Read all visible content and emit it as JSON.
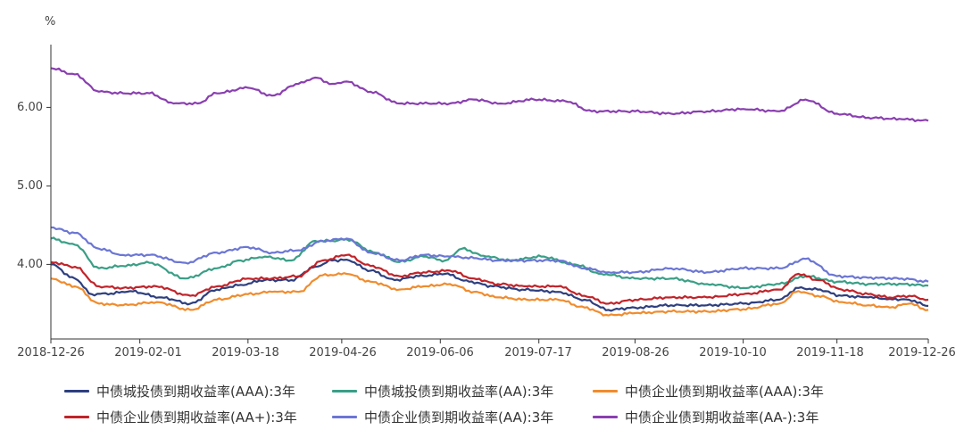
{
  "chart_data": {
    "type": "line",
    "y_unit": "%",
    "ylim": [
      3.05,
      6.8
    ],
    "y_ticks": [
      "4.00",
      "5.00",
      "6.00"
    ],
    "y_tick_values": [
      4.0,
      5.0,
      6.0
    ],
    "x_range": [
      "2018-12-26",
      "2019-12-26"
    ],
    "x_ticks": [
      "2018-12-26",
      "2019-02-01",
      "2019-03-18",
      "2019-04-26",
      "2019-06-06",
      "2019-07-17",
      "2019-08-26",
      "2019-10-10",
      "2019-11-18",
      "2019-12-26"
    ],
    "grid": false,
    "legend_position": "bottom",
    "series": [
      {
        "name": "中债城投债到期收益率(AAA):3年",
        "color": "#2e3f7f",
        "points": [
          [
            "2018-12-26",
            4.0
          ],
          [
            "2019-01-05",
            3.82
          ],
          [
            "2019-01-12",
            3.62
          ],
          [
            "2019-01-20",
            3.63
          ],
          [
            "2019-01-28",
            3.66
          ],
          [
            "2019-02-10",
            3.58
          ],
          [
            "2019-02-22",
            3.5
          ],
          [
            "2019-03-05",
            3.68
          ],
          [
            "2019-03-15",
            3.74
          ],
          [
            "2019-03-25",
            3.8
          ],
          [
            "2019-04-05",
            3.8
          ],
          [
            "2019-04-15",
            3.97
          ],
          [
            "2019-04-22",
            4.05
          ],
          [
            "2019-04-28",
            4.06
          ],
          [
            "2019-05-08",
            3.92
          ],
          [
            "2019-05-18",
            3.8
          ],
          [
            "2019-05-28",
            3.85
          ],
          [
            "2019-06-08",
            3.88
          ],
          [
            "2019-06-18",
            3.78
          ],
          [
            "2019-06-28",
            3.72
          ],
          [
            "2019-07-10",
            3.68
          ],
          [
            "2019-07-25",
            3.65
          ],
          [
            "2019-08-05",
            3.55
          ],
          [
            "2019-08-15",
            3.42
          ],
          [
            "2019-08-26",
            3.45
          ],
          [
            "2019-09-10",
            3.48
          ],
          [
            "2019-09-25",
            3.48
          ],
          [
            "2019-10-10",
            3.5
          ],
          [
            "2019-10-25",
            3.55
          ],
          [
            "2019-11-02",
            3.7
          ],
          [
            "2019-11-10",
            3.68
          ],
          [
            "2019-11-20",
            3.6
          ],
          [
            "2019-12-01",
            3.58
          ],
          [
            "2019-12-10",
            3.56
          ],
          [
            "2019-12-18",
            3.55
          ],
          [
            "2019-12-26",
            3.47
          ]
        ]
      },
      {
        "name": "中债城投债到期收益率(AA):3年",
        "color": "#3a9f86",
        "points": [
          [
            "2018-12-26",
            4.33
          ],
          [
            "2019-01-05",
            4.25
          ],
          [
            "2019-01-15",
            3.95
          ],
          [
            "2019-01-25",
            3.98
          ],
          [
            "2019-02-05",
            4.02
          ],
          [
            "2019-02-20",
            3.82
          ],
          [
            "2019-03-05",
            3.95
          ],
          [
            "2019-03-15",
            4.05
          ],
          [
            "2019-03-25",
            4.1
          ],
          [
            "2019-04-05",
            4.05
          ],
          [
            "2019-04-15",
            4.3
          ],
          [
            "2019-04-22",
            4.3
          ],
          [
            "2019-04-28",
            4.32
          ],
          [
            "2019-05-10",
            4.15
          ],
          [
            "2019-05-20",
            4.03
          ],
          [
            "2019-05-30",
            4.1
          ],
          [
            "2019-06-08",
            4.05
          ],
          [
            "2019-06-15",
            4.2
          ],
          [
            "2019-06-25",
            4.1
          ],
          [
            "2019-07-05",
            4.05
          ],
          [
            "2019-07-18",
            4.1
          ],
          [
            "2019-08-01",
            4.0
          ],
          [
            "2019-08-12",
            3.88
          ],
          [
            "2019-08-26",
            3.82
          ],
          [
            "2019-09-10",
            3.82
          ],
          [
            "2019-09-25",
            3.75
          ],
          [
            "2019-10-10",
            3.7
          ],
          [
            "2019-10-25",
            3.75
          ],
          [
            "2019-11-05",
            3.85
          ],
          [
            "2019-11-18",
            3.78
          ],
          [
            "2019-12-01",
            3.75
          ],
          [
            "2019-12-15",
            3.75
          ],
          [
            "2019-12-26",
            3.73
          ]
        ]
      },
      {
        "name": "中债企业债到期收益率(AAA):3年",
        "color": "#f08c2e",
        "points": [
          [
            "2018-12-26",
            3.82
          ],
          [
            "2019-01-05",
            3.72
          ],
          [
            "2019-01-15",
            3.5
          ],
          [
            "2019-01-25",
            3.48
          ],
          [
            "2019-02-08",
            3.52
          ],
          [
            "2019-02-22",
            3.42
          ],
          [
            "2019-03-05",
            3.55
          ],
          [
            "2019-03-18",
            3.62
          ],
          [
            "2019-03-28",
            3.65
          ],
          [
            "2019-04-08",
            3.65
          ],
          [
            "2019-04-18",
            3.86
          ],
          [
            "2019-04-28",
            3.88
          ],
          [
            "2019-05-08",
            3.78
          ],
          [
            "2019-05-20",
            3.68
          ],
          [
            "2019-05-30",
            3.72
          ],
          [
            "2019-06-10",
            3.75
          ],
          [
            "2019-06-20",
            3.65
          ],
          [
            "2019-06-30",
            3.58
          ],
          [
            "2019-07-12",
            3.55
          ],
          [
            "2019-07-25",
            3.55
          ],
          [
            "2019-08-05",
            3.45
          ],
          [
            "2019-08-15",
            3.35
          ],
          [
            "2019-08-26",
            3.38
          ],
          [
            "2019-09-10",
            3.4
          ],
          [
            "2019-09-25",
            3.4
          ],
          [
            "2019-10-10",
            3.43
          ],
          [
            "2019-10-25",
            3.5
          ],
          [
            "2019-11-02",
            3.66
          ],
          [
            "2019-11-10",
            3.6
          ],
          [
            "2019-11-20",
            3.52
          ],
          [
            "2019-12-01",
            3.48
          ],
          [
            "2019-12-10",
            3.45
          ],
          [
            "2019-12-18",
            3.5
          ],
          [
            "2019-12-26",
            3.42
          ]
        ]
      },
      {
        "name": "中债企业债到期收益率(AA+):3年",
        "color": "#c0242a",
        "points": [
          [
            "2018-12-26",
            4.03
          ],
          [
            "2019-01-05",
            3.97
          ],
          [
            "2019-01-15",
            3.72
          ],
          [
            "2019-01-25",
            3.7
          ],
          [
            "2019-02-08",
            3.72
          ],
          [
            "2019-02-22",
            3.6
          ],
          [
            "2019-03-05",
            3.72
          ],
          [
            "2019-03-18",
            3.82
          ],
          [
            "2019-03-28",
            3.82
          ],
          [
            "2019-04-08",
            3.85
          ],
          [
            "2019-04-18",
            4.05
          ],
          [
            "2019-04-28",
            4.12
          ],
          [
            "2019-05-08",
            3.98
          ],
          [
            "2019-05-20",
            3.85
          ],
          [
            "2019-05-30",
            3.9
          ],
          [
            "2019-06-10",
            3.92
          ],
          [
            "2019-06-20",
            3.82
          ],
          [
            "2019-06-30",
            3.75
          ],
          [
            "2019-07-12",
            3.72
          ],
          [
            "2019-07-25",
            3.72
          ],
          [
            "2019-08-05",
            3.6
          ],
          [
            "2019-08-15",
            3.5
          ],
          [
            "2019-08-26",
            3.55
          ],
          [
            "2019-09-10",
            3.58
          ],
          [
            "2019-09-25",
            3.58
          ],
          [
            "2019-10-10",
            3.62
          ],
          [
            "2019-10-25",
            3.68
          ],
          [
            "2019-11-02",
            3.88
          ],
          [
            "2019-11-10",
            3.8
          ],
          [
            "2019-11-20",
            3.68
          ],
          [
            "2019-12-01",
            3.62
          ],
          [
            "2019-12-10",
            3.58
          ],
          [
            "2019-12-18",
            3.6
          ],
          [
            "2019-12-26",
            3.55
          ]
        ]
      },
      {
        "name": "中债企业债到期收益率(AA):3年",
        "color": "#6b76d4",
        "points": [
          [
            "2018-12-26",
            4.47
          ],
          [
            "2019-01-05",
            4.4
          ],
          [
            "2019-01-15",
            4.2
          ],
          [
            "2019-01-25",
            4.12
          ],
          [
            "2019-02-05",
            4.12
          ],
          [
            "2019-02-20",
            4.02
          ],
          [
            "2019-03-05",
            4.15
          ],
          [
            "2019-03-18",
            4.22
          ],
          [
            "2019-03-28",
            4.15
          ],
          [
            "2019-04-08",
            4.18
          ],
          [
            "2019-04-18",
            4.3
          ],
          [
            "2019-04-28",
            4.33
          ],
          [
            "2019-05-08",
            4.15
          ],
          [
            "2019-05-20",
            4.05
          ],
          [
            "2019-05-30",
            4.12
          ],
          [
            "2019-06-10",
            4.1
          ],
          [
            "2019-06-20",
            4.08
          ],
          [
            "2019-06-30",
            4.05
          ],
          [
            "2019-07-12",
            4.05
          ],
          [
            "2019-07-25",
            4.05
          ],
          [
            "2019-08-05",
            3.95
          ],
          [
            "2019-08-15",
            3.9
          ],
          [
            "2019-08-26",
            3.9
          ],
          [
            "2019-09-10",
            3.95
          ],
          [
            "2019-09-25",
            3.9
          ],
          [
            "2019-10-10",
            3.95
          ],
          [
            "2019-10-25",
            3.95
          ],
          [
            "2019-11-05",
            4.07
          ],
          [
            "2019-11-18",
            3.85
          ],
          [
            "2019-12-01",
            3.83
          ],
          [
            "2019-12-15",
            3.82
          ],
          [
            "2019-12-26",
            3.78
          ]
        ]
      },
      {
        "name": "中债企业债到期收益率(AA-):3年",
        "color": "#8a3fb0",
        "points": [
          [
            "2018-12-26",
            6.5
          ],
          [
            "2019-01-05",
            6.42
          ],
          [
            "2019-01-15",
            6.2
          ],
          [
            "2019-01-25",
            6.18
          ],
          [
            "2019-02-05",
            6.18
          ],
          [
            "2019-02-15",
            6.05
          ],
          [
            "2019-02-25",
            6.05
          ],
          [
            "2019-03-05",
            6.18
          ],
          [
            "2019-03-18",
            6.25
          ],
          [
            "2019-03-28",
            6.15
          ],
          [
            "2019-04-08",
            6.3
          ],
          [
            "2019-04-15",
            6.38
          ],
          [
            "2019-04-22",
            6.3
          ],
          [
            "2019-04-28",
            6.33
          ],
          [
            "2019-05-08",
            6.2
          ],
          [
            "2019-05-20",
            6.05
          ],
          [
            "2019-06-01",
            6.05
          ],
          [
            "2019-06-10",
            6.05
          ],
          [
            "2019-06-20",
            6.1
          ],
          [
            "2019-07-01",
            6.05
          ],
          [
            "2019-07-15",
            6.1
          ],
          [
            "2019-07-28",
            6.08
          ],
          [
            "2019-08-08",
            5.95
          ],
          [
            "2019-08-26",
            5.95
          ],
          [
            "2019-09-10",
            5.92
          ],
          [
            "2019-09-25",
            5.95
          ],
          [
            "2019-10-10",
            5.98
          ],
          [
            "2019-10-25",
            5.95
          ],
          [
            "2019-11-05",
            6.1
          ],
          [
            "2019-11-18",
            5.92
          ],
          [
            "2019-12-01",
            5.87
          ],
          [
            "2019-12-15",
            5.85
          ],
          [
            "2019-12-26",
            5.83
          ]
        ]
      }
    ]
  }
}
